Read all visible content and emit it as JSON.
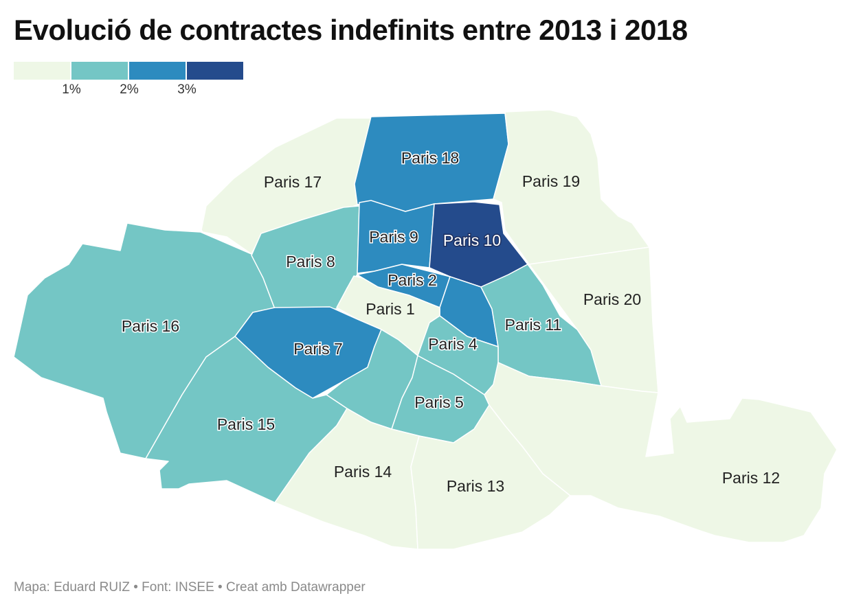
{
  "title": "Evolució de contractes indefinits entre 2013 i 2018",
  "legend": {
    "colors": [
      "#eef7e6",
      "#74c6c5",
      "#2d8bbf",
      "#244b8c"
    ],
    "ticks": [
      "1%",
      "2%",
      "3%"
    ]
  },
  "districts": {
    "p1": {
      "label": "Paris 1",
      "bin": 0
    },
    "p2": {
      "label": "Paris 2",
      "bin": 2
    },
    "p4": {
      "label": "Paris 4",
      "bin": 1
    },
    "p5": {
      "label": "Paris 5",
      "bin": 1
    },
    "p6": {
      "label": "",
      "bin": 1
    },
    "p7": {
      "label": "Paris 7",
      "bin": 2
    },
    "p8": {
      "label": "Paris 8",
      "bin": 1
    },
    "p9": {
      "label": "Paris 9",
      "bin": 2
    },
    "p10": {
      "label": "Paris 10",
      "bin": 3
    },
    "p11": {
      "label": "Paris 11",
      "bin": 1
    },
    "p12": {
      "label": "Paris 12",
      "bin": 0
    },
    "p13": {
      "label": "Paris 13",
      "bin": 0
    },
    "p14": {
      "label": "Paris 14",
      "bin": 0
    },
    "p15": {
      "label": "Paris 15",
      "bin": 1
    },
    "p16": {
      "label": "Paris 16",
      "bin": 1
    },
    "p17": {
      "label": "Paris 17",
      "bin": 0
    },
    "p18": {
      "label": "Paris 18",
      "bin": 2
    },
    "p19": {
      "label": "Paris 19",
      "bin": 0
    },
    "p20": {
      "label": "Paris 20",
      "bin": 0
    },
    "p3": {
      "label": "",
      "bin": 2
    }
  },
  "footer": "Mapa: Eduard RUIZ • Font: INSEE • Creat amb Datawrapper"
}
